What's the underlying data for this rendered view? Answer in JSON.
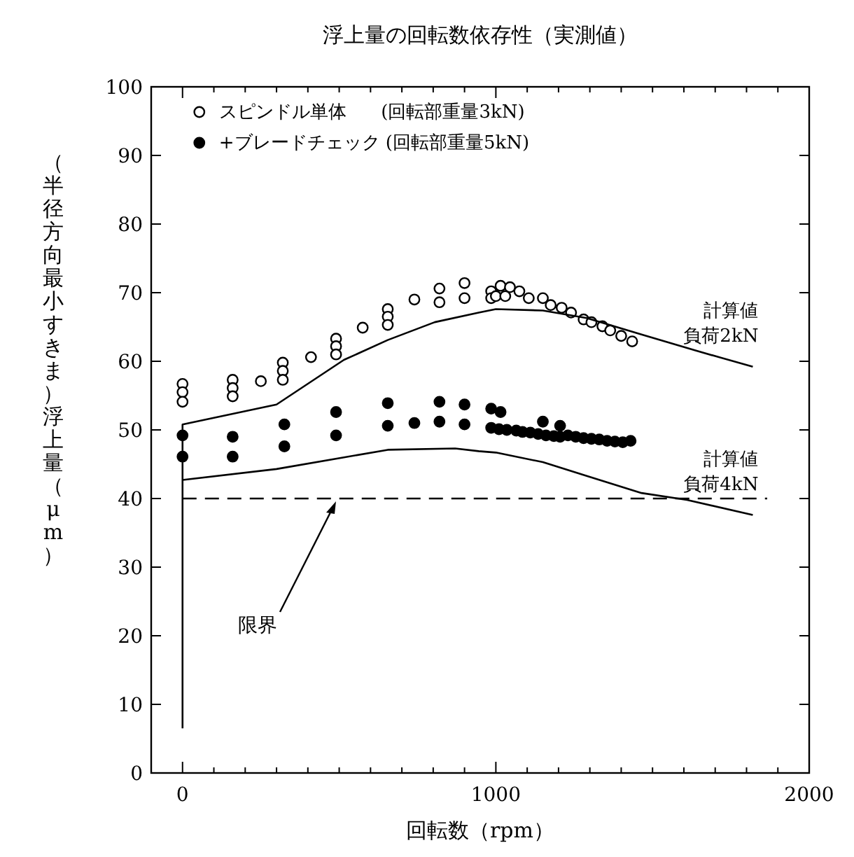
{
  "chart_data": {
    "type": "scatter",
    "title": "浮上量の回転数依存性（実測値）",
    "xlabel": "回転数（rpm）",
    "ylabel": "（半径方向最小すきま）浮上量（μm）",
    "xlim": [
      -100,
      2000
    ],
    "ylim": [
      0,
      100
    ],
    "xticks": [
      0,
      {
        "value": 100,
        "label": null
      },
      {
        "value": 200,
        "label": null
      },
      {
        "value": 300,
        "label": null
      },
      {
        "value": 400,
        "label": null
      },
      {
        "value": 500,
        "label": null
      },
      {
        "value": 600,
        "label": null
      },
      {
        "value": 700,
        "label": null
      },
      {
        "value": 800,
        "label": null
      },
      {
        "value": 900,
        "label": null
      },
      1000,
      {
        "value": 1100,
        "label": null
      },
      {
        "value": 1200,
        "label": null
      },
      {
        "value": 1300,
        "label": null
      },
      {
        "value": 1400,
        "label": null
      },
      {
        "value": 1500,
        "label": null
      },
      {
        "value": 1600,
        "label": null
      },
      {
        "value": 1700,
        "label": null
      },
      {
        "value": 1800,
        "label": null
      },
      {
        "value": 1900,
        "label": null
      },
      2000
    ],
    "yticks": [
      0,
      10,
      20,
      30,
      40,
      50,
      60,
      70,
      80,
      90,
      100
    ],
    "grid": false,
    "legend": "top left",
    "marker": "circle",
    "ref_lines": [
      {
        "axis": "y",
        "value": 40,
        "label": "限界",
        "line_style": "dashed",
        "color": "#000000"
      }
    ],
    "series": [
      {
        "name": "スピンドル単体      (回転部重量3kN)",
        "color": "#ffffff",
        "x": [
          0,
          0,
          0,
          160,
          160,
          160,
          250,
          320,
          320,
          320,
          410,
          490,
          490,
          490,
          575,
          655,
          655,
          655,
          740,
          820,
          820,
          900,
          900,
          985,
          985,
          1015,
          1045,
          1075,
          1105,
          1150,
          1175,
          1210,
          1240,
          1280,
          1305,
          1340,
          1365,
          1400,
          1435,
          1000,
          1030
        ],
        "values": [
          56.7,
          55.5,
          54.1,
          57.3,
          56.1,
          54.9,
          57.1,
          59.8,
          58.6,
          57.3,
          60.6,
          63.3,
          62.2,
          61.0,
          64.9,
          67.6,
          66.5,
          65.3,
          69.0,
          70.6,
          68.6,
          71.4,
          69.2,
          70.2,
          69.2,
          71.0,
          70.8,
          70.2,
          69.2,
          69.2,
          68.2,
          67.8,
          67.1,
          66.1,
          65.7,
          65.1,
          64.5,
          63.7,
          62.9,
          69.5,
          69.5
        ]
      },
      {
        "name": "+ブレードチェック (回転部重量5kN)",
        "color": "#000000",
        "x": [
          0,
          0,
          160,
          160,
          325,
          325,
          490,
          490,
          655,
          655,
          740,
          820,
          820,
          900,
          900,
          985,
          1015,
          1150,
          1205,
          985,
          1010,
          1035,
          1065,
          1085,
          1110,
          1135,
          1160,
          1185,
          1205,
          1230,
          1255,
          1280,
          1305,
          1330,
          1355,
          1380,
          1405,
          1430
        ],
        "values": [
          49.2,
          46.1,
          49.0,
          46.1,
          50.8,
          47.6,
          52.6,
          49.2,
          53.9,
          50.6,
          51.0,
          54.1,
          51.2,
          53.7,
          50.8,
          53.1,
          52.6,
          51.2,
          50.6,
          50.3,
          50.1,
          50.0,
          49.9,
          49.7,
          49.6,
          49.4,
          49.2,
          49.1,
          49.0,
          49.2,
          49.0,
          48.8,
          48.7,
          48.6,
          48.4,
          48.3,
          48.2,
          48.4
        ]
      },
      {
        "name": "計算値負荷2kN",
        "type": "line",
        "color": "#000000",
        "marker": "none",
        "x": [
          0,
          0,
          300,
          515,
          655,
          805,
          945,
          1000,
          1150,
          1290,
          1465,
          1635,
          1820
        ],
        "values": [
          6.5,
          50.8,
          53.7,
          60.2,
          63.1,
          65.7,
          67.1,
          67.6,
          67.4,
          66.3,
          63.9,
          61.6,
          59.2
        ]
      },
      {
        "name": "計算値負荷4kN",
        "type": "line",
        "color": "#000000",
        "marker": "none",
        "x": [
          0,
          300,
          515,
          655,
          870,
          945,
          1000,
          1150,
          1290,
          1465,
          1610,
          1820
        ],
        "values": [
          42.7,
          44.3,
          46.0,
          47.1,
          47.3,
          46.9,
          46.7,
          45.3,
          43.3,
          40.8,
          39.8,
          37.6
        ]
      }
    ]
  }
}
